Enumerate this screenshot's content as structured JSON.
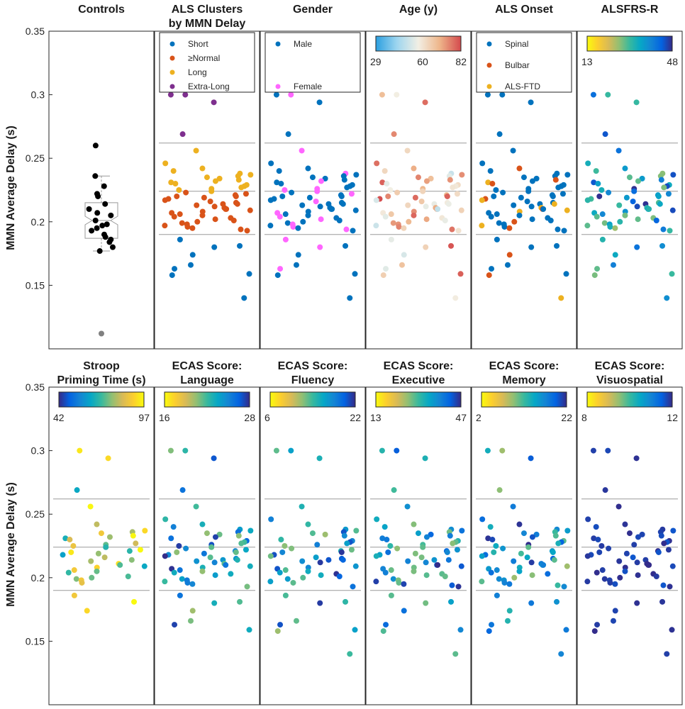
{
  "figure": {
    "ylabel": "MMN Average Delay (s)"
  },
  "chart_data": {
    "type": "scatter",
    "ylim": [
      0.1,
      0.35
    ],
    "yticks": [
      0.15,
      0.2,
      0.25,
      0.3,
      0.35
    ],
    "yticklabels": [
      "0.15",
      "0.2",
      "0.25",
      "0.3",
      "0.35"
    ],
    "reference_lines": [
      0.19,
      0.224,
      0.262
    ],
    "palettes": {
      "parula": [
        "#352a87",
        "#0363e1",
        "#1485d4",
        "#06a7c6",
        "#38b99e",
        "#92bf73",
        "#d9ba56",
        "#fcce2e",
        "#f9fb0e"
      ],
      "parula_r": [
        "#f9fb0e",
        "#fcce2e",
        "#d9ba56",
        "#92bf73",
        "#38b99e",
        "#06a7c6",
        "#1485d4",
        "#0363e1",
        "#352a87"
      ],
      "coolwarm": [
        "#2b9fe0",
        "#9fd6ef",
        "#f2efe4",
        "#eeb58a",
        "#d44a4d"
      ]
    },
    "category_colors": {
      "cluster": {
        "Short": "#0072bd",
        "Normal": "#d95319",
        "Long": "#edb120",
        "ExtraLong": "#7e2f8e"
      },
      "gender": {
        "Male": "#0072bd",
        "Female": "#ff66ff"
      },
      "onset": {
        "Spinal": "#0072bd",
        "Bulbar": "#d95319",
        "ALS-FTD": "#edb120"
      }
    },
    "controls": {
      "values": [
        0.26,
        0.236,
        0.228,
        0.222,
        0.22,
        0.214,
        0.21,
        0.207,
        0.205,
        0.201,
        0.198,
        0.197,
        0.195,
        0.193,
        0.19,
        0.188,
        0.186,
        0.184,
        0.18,
        0.177,
        0.112
      ],
      "outliers": [
        0.112
      ],
      "box": {
        "q1": 0.187,
        "median": 0.201,
        "q3": 0.215,
        "whisker_low": 0.177,
        "whisker_high": 0.236
      }
    },
    "als_values": [
      0.3,
      0.3,
      0.294,
      0.269,
      0.256,
      0.246,
      0.242,
      0.24,
      0.238,
      0.237,
      0.236,
      0.235,
      0.234,
      0.233,
      0.232,
      0.231,
      0.23,
      0.229,
      0.228,
      0.227,
      0.226,
      0.225,
      0.224,
      0.223,
      0.222,
      0.221,
      0.22,
      0.22,
      0.219,
      0.218,
      0.217,
      0.216,
      0.215,
      0.214,
      0.214,
      0.213,
      0.212,
      0.211,
      0.21,
      0.21,
      0.209,
      0.208,
      0.207,
      0.206,
      0.205,
      0.204,
      0.203,
      0.202,
      0.201,
      0.2,
      0.199,
      0.198,
      0.197,
      0.196,
      0.195,
      0.194,
      0.193,
      0.186,
      0.181,
      0.18,
      0.174,
      0.166,
      0.163,
      0.159,
      0.158,
      0.14
    ],
    "panels": [
      {
        "title": [
          "Controls"
        ],
        "kind": "controls"
      },
      {
        "title": [
          "ALS Clusters",
          "by MMN Delay"
        ],
        "kind": "cluster",
        "legend": [
          {
            "label": "Short",
            "key": "Short"
          },
          {
            "label": "≥Normal",
            "key": "Normal"
          },
          {
            "label": "Long",
            "key": "Long"
          },
          {
            "label": "Extra-Long",
            "key": "ExtraLong"
          }
        ]
      },
      {
        "title": [
          "Gender"
        ],
        "kind": "gender",
        "legend": [
          {
            "label": "Male",
            "key": "Male"
          },
          {
            "label": "Female",
            "key": "Female"
          }
        ]
      },
      {
        "title": [
          "Age (y)"
        ],
        "kind": "continuous",
        "palette": "coolwarm",
        "clim": [
          29,
          82
        ],
        "cbar_ticks": [
          "29",
          "60",
          "82"
        ],
        "seed": 3
      },
      {
        "title": [
          "ALS Onset"
        ],
        "kind": "onset",
        "legend": [
          {
            "label": "Spinal",
            "key": "Spinal"
          },
          {
            "label": "Bulbar",
            "key": "Bulbar"
          },
          {
            "label": "ALS-FTD",
            "key": "ALS-FTD"
          }
        ]
      },
      {
        "title": [
          "ALSFRS-R"
        ],
        "kind": "continuous",
        "palette": "parula_r",
        "clim": [
          13,
          48
        ],
        "cbar_ticks": [
          "13",
          "48"
        ],
        "seed": 5
      },
      {
        "title": [
          "Stroop",
          "Priming Time (s)"
        ],
        "kind": "continuous",
        "palette": "parula",
        "clim": [
          42,
          97
        ],
        "cbar_ticks": [
          "42",
          "97"
        ],
        "seed": 7,
        "subset": 0.55
      },
      {
        "title": [
          "ECAS Score:",
          "Language"
        ],
        "kind": "continuous",
        "palette": "parula_r",
        "clim": [
          16,
          28
        ],
        "cbar_ticks": [
          "16",
          "28"
        ],
        "seed": 11,
        "subset": 0.9
      },
      {
        "title": [
          "ECAS Score:",
          "Fluency"
        ],
        "kind": "continuous",
        "palette": "parula_r",
        "clim": [
          6,
          22
        ],
        "cbar_ticks": [
          "6",
          "22"
        ],
        "seed": 13,
        "subset": 0.9
      },
      {
        "title": [
          "ECAS Score:",
          "Executive"
        ],
        "kind": "continuous",
        "palette": "parula_r",
        "clim": [
          13,
          47
        ],
        "cbar_ticks": [
          "13",
          "47"
        ],
        "seed": 17,
        "subset": 0.9
      },
      {
        "title": [
          "ECAS Score:",
          "Memory"
        ],
        "kind": "continuous",
        "palette": "parula_r",
        "clim": [
          2,
          22
        ],
        "cbar_ticks": [
          "2",
          "22"
        ],
        "seed": 19,
        "subset": 0.9
      },
      {
        "title": [
          "ECAS Score:",
          "Visuospatial"
        ],
        "kind": "continuous",
        "palette": "parula_r",
        "clim": [
          8,
          12
        ],
        "cbar_ticks": [
          "8",
          "12"
        ],
        "seed": 23,
        "subset": 0.9,
        "bias": 0.9
      }
    ]
  }
}
